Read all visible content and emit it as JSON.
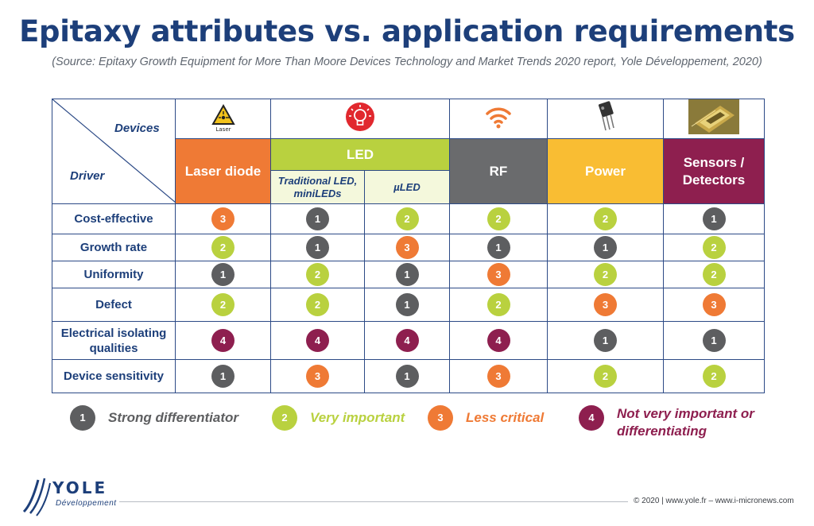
{
  "title": "Epitaxy attributes vs. application requirements",
  "subtitle": "(Source: Epitaxy Growth Equipment for More Than Moore Devices Technology and Market Trends 2020 report, Yole Développement, 2020)",
  "table": {
    "corner_devices": "Devices",
    "corner_driver": "Driver",
    "laser_icon_caption": "Laser",
    "headers": {
      "laser": "Laser diode",
      "led": "LED",
      "led_traditional": "Traditional LED, miniLEDs",
      "led_micro": "µLED",
      "rf": "RF",
      "power": "Power",
      "sensors": "Sensors / Detectors"
    },
    "rows": [
      {
        "label": "Cost-effective",
        "values": [
          "3",
          "1",
          "2",
          "2",
          "2",
          "1"
        ]
      },
      {
        "label": "Growth rate",
        "values": [
          "2",
          "1",
          "3",
          "1",
          "1",
          "2"
        ]
      },
      {
        "label": "Uniformity",
        "values": [
          "1",
          "2",
          "1",
          "3",
          "2",
          "2"
        ]
      },
      {
        "label": "Defect",
        "values": [
          "2",
          "2",
          "1",
          "2",
          "3",
          "3"
        ]
      },
      {
        "label": "Electrical isolating qualities",
        "values": [
          "4",
          "4",
          "4",
          "4",
          "1",
          "1"
        ]
      },
      {
        "label": "Device sensitivity",
        "values": [
          "1",
          "3",
          "1",
          "3",
          "2",
          "2"
        ]
      }
    ]
  },
  "legend": [
    {
      "value": "1",
      "text": "Strong differentiator"
    },
    {
      "value": "2",
      "text": "Very important"
    },
    {
      "value": "3",
      "text": "Less critical"
    },
    {
      "value": "4",
      "text": "Not very important or differentiating"
    }
  ],
  "logo": {
    "name": "YOLE",
    "sub": "Développement"
  },
  "copyright": "© 2020 | www.yole.fr – www.i-micronews.com",
  "colors": {
    "1": "#5d5e60",
    "2": "#b9d13f",
    "3": "#ef7a35",
    "4": "#8e1f4f",
    "title": "#1d3f7a"
  }
}
